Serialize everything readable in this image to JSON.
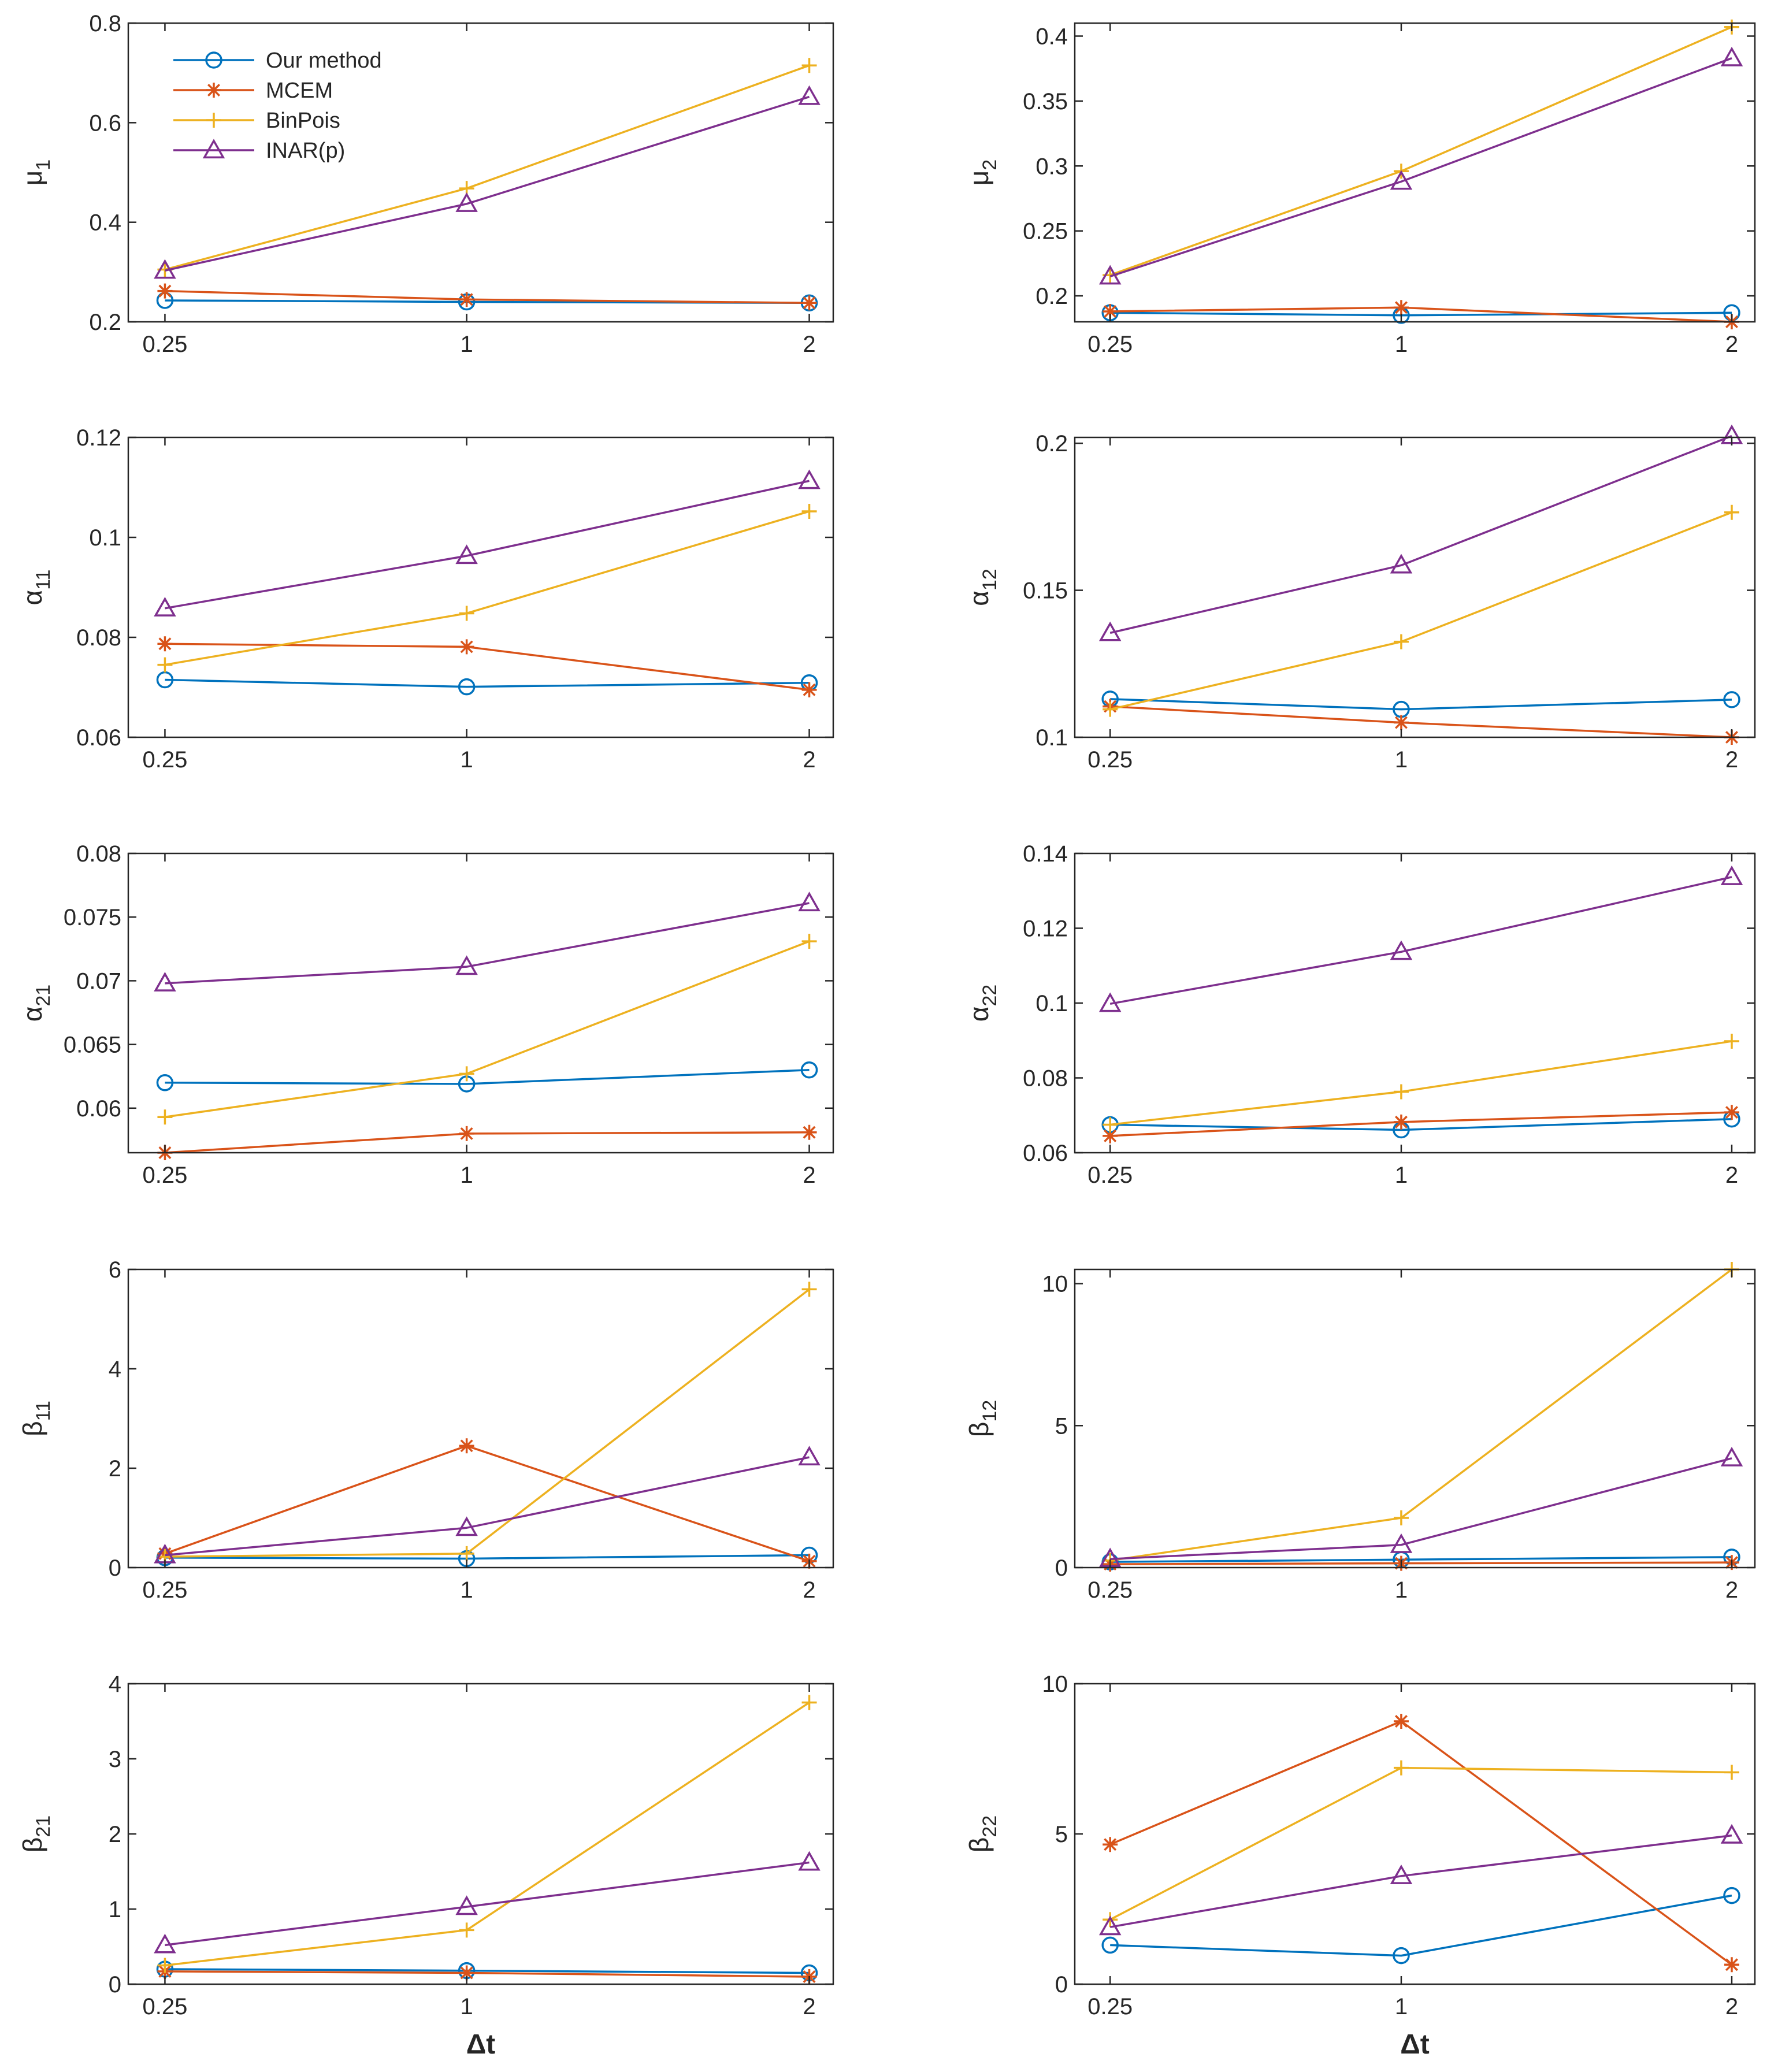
{
  "colors": {
    "our_method": "#0072BD",
    "mcem": "#D95319",
    "binpois": "#EDB120",
    "inar": "#7E2F8E",
    "axis": "#262626"
  },
  "legend": {
    "entries": [
      {
        "name": "Our method",
        "series_key": "our_method",
        "marker": "circle"
      },
      {
        "name": "MCEM",
        "series_key": "mcem",
        "marker": "asterisk"
      },
      {
        "name": "BinPois",
        "series_key": "binpois",
        "marker": "plus"
      },
      {
        "name": "INAR(p)",
        "series_key": "inar",
        "marker": "triangle"
      }
    ]
  },
  "chart_data": [
    {
      "type": "line",
      "ylabel": "μ",
      "ylabel_sub": "1",
      "xlabel": "",
      "categories": [
        "0.25",
        "1",
        "2"
      ],
      "ylim": [
        0.2,
        0.8
      ],
      "yticks": [
        "0.2",
        "0.4",
        "0.6",
        "0.8"
      ],
      "series": [
        {
          "name": "Our method",
          "key": "our_method",
          "marker": "circle",
          "values": [
            0.243,
            0.24,
            0.238
          ]
        },
        {
          "name": "MCEM",
          "key": "mcem",
          "marker": "asterisk",
          "values": [
            0.262,
            0.245,
            0.238
          ]
        },
        {
          "name": "BinPois",
          "key": "binpois",
          "marker": "plus",
          "values": [
            0.305,
            0.468,
            0.715
          ]
        },
        {
          "name": "INAR(p)",
          "key": "inar",
          "marker": "triangle",
          "values": [
            0.303,
            0.437,
            0.652
          ]
        }
      ]
    },
    {
      "type": "line",
      "ylabel": "μ",
      "ylabel_sub": "2",
      "xlabel": "",
      "categories": [
        "0.25",
        "1",
        "2"
      ],
      "ylim": [
        0.18,
        0.41
      ],
      "yticks": [
        "0.2",
        "0.25",
        "0.3",
        "0.35",
        "0.4"
      ],
      "series": [
        {
          "name": "Our method",
          "key": "our_method",
          "marker": "circle",
          "values": [
            0.187,
            0.185,
            0.187
          ]
        },
        {
          "name": "MCEM",
          "key": "mcem",
          "marker": "asterisk",
          "values": [
            0.188,
            0.191,
            0.18
          ]
        },
        {
          "name": "BinPois",
          "key": "binpois",
          "marker": "plus",
          "values": [
            0.216,
            0.296,
            0.407
          ]
        },
        {
          "name": "INAR(p)",
          "key": "inar",
          "marker": "triangle",
          "values": [
            0.215,
            0.288,
            0.383
          ]
        }
      ]
    },
    {
      "type": "line",
      "ylabel": "α",
      "ylabel_sub": "11",
      "xlabel": "",
      "categories": [
        "0.25",
        "1",
        "2"
      ],
      "ylim": [
        0.06,
        0.12
      ],
      "yticks": [
        "0.06",
        "0.08",
        "0.1",
        "0.12"
      ],
      "series": [
        {
          "name": "Our method",
          "key": "our_method",
          "marker": "circle",
          "values": [
            0.0715,
            0.0701,
            0.0709
          ]
        },
        {
          "name": "MCEM",
          "key": "mcem",
          "marker": "asterisk",
          "values": [
            0.0787,
            0.0781,
            0.0695
          ]
        },
        {
          "name": "BinPois",
          "key": "binpois",
          "marker": "plus",
          "values": [
            0.0745,
            0.0848,
            0.1052
          ]
        },
        {
          "name": "INAR(p)",
          "key": "inar",
          "marker": "triangle",
          "values": [
            0.0858,
            0.0963,
            0.1113
          ]
        }
      ]
    },
    {
      "type": "line",
      "ylabel": "α",
      "ylabel_sub": "12",
      "xlabel": "",
      "categories": [
        "0.25",
        "1",
        "2"
      ],
      "ylim": [
        0.1,
        0.202
      ],
      "yticks": [
        "0.1",
        "0.15",
        "0.2"
      ],
      "series": [
        {
          "name": "Our method",
          "key": "our_method",
          "marker": "circle",
          "values": [
            0.113,
            0.1095,
            0.1128
          ]
        },
        {
          "name": "MCEM",
          "key": "mcem",
          "marker": "asterisk",
          "values": [
            0.1105,
            0.105,
            0.1
          ]
        },
        {
          "name": "BinPois",
          "key": "binpois",
          "marker": "plus",
          "values": [
            0.1095,
            0.1325,
            0.1765
          ]
        },
        {
          "name": "INAR(p)",
          "key": "inar",
          "marker": "triangle",
          "values": [
            0.1355,
            0.1585,
            0.2025
          ]
        }
      ]
    },
    {
      "type": "line",
      "ylabel": "α",
      "ylabel_sub": "21",
      "xlabel": "",
      "categories": [
        "0.25",
        "1",
        "2"
      ],
      "ylim": [
        0.0565,
        0.08
      ],
      "yticks": [
        "0.06",
        "0.065",
        "0.07",
        "0.075",
        "0.08"
      ],
      "series": [
        {
          "name": "Our method",
          "key": "our_method",
          "marker": "circle",
          "values": [
            0.062,
            0.0619,
            0.063
          ]
        },
        {
          "name": "MCEM",
          "key": "mcem",
          "marker": "asterisk",
          "values": [
            0.0565,
            0.058,
            0.0581
          ]
        },
        {
          "name": "BinPois",
          "key": "binpois",
          "marker": "plus",
          "values": [
            0.0593,
            0.0627,
            0.0731
          ]
        },
        {
          "name": "INAR(p)",
          "key": "inar",
          "marker": "triangle",
          "values": [
            0.0698,
            0.0711,
            0.0761
          ]
        }
      ]
    },
    {
      "type": "line",
      "ylabel": "α",
      "ylabel_sub": "22",
      "xlabel": "",
      "categories": [
        "0.25",
        "1",
        "2"
      ],
      "ylim": [
        0.06,
        0.14
      ],
      "yticks": [
        "0.06",
        "0.08",
        "0.1",
        "0.12",
        "0.14"
      ],
      "series": [
        {
          "name": "Our method",
          "key": "our_method",
          "marker": "circle",
          "values": [
            0.0675,
            0.0661,
            0.069
          ]
        },
        {
          "name": "MCEM",
          "key": "mcem",
          "marker": "asterisk",
          "values": [
            0.0645,
            0.0682,
            0.0708
          ]
        },
        {
          "name": "BinPois",
          "key": "binpois",
          "marker": "plus",
          "values": [
            0.0675,
            0.0763,
            0.0898
          ]
        },
        {
          "name": "INAR(p)",
          "key": "inar",
          "marker": "triangle",
          "values": [
            0.0998,
            0.1137,
            0.1337
          ]
        }
      ]
    },
    {
      "type": "line",
      "ylabel": "β",
      "ylabel_sub": "11",
      "xlabel": "",
      "categories": [
        "0.25",
        "1",
        "2"
      ],
      "ylim": [
        0,
        6
      ],
      "yticks": [
        "0",
        "2",
        "4",
        "6"
      ],
      "series": [
        {
          "name": "Our method",
          "key": "our_method",
          "marker": "circle",
          "values": [
            0.2,
            0.18,
            0.25
          ]
        },
        {
          "name": "MCEM",
          "key": "mcem",
          "marker": "asterisk",
          "values": [
            0.28,
            2.45,
            0.13
          ]
        },
        {
          "name": "BinPois",
          "key": "binpois",
          "marker": "plus",
          "values": [
            0.22,
            0.28,
            5.6
          ]
        },
        {
          "name": "INAR(p)",
          "key": "inar",
          "marker": "triangle",
          "values": [
            0.25,
            0.8,
            2.22
          ]
        }
      ]
    },
    {
      "type": "line",
      "ylabel": "β",
      "ylabel_sub": "12",
      "xlabel": "",
      "categories": [
        "0.25",
        "1",
        "2"
      ],
      "ylim": [
        0,
        10.5
      ],
      "yticks": [
        "0",
        "5",
        "10"
      ],
      "series": [
        {
          "name": "Our method",
          "key": "our_method",
          "marker": "circle",
          "values": [
            0.2,
            0.28,
            0.37
          ]
        },
        {
          "name": "MCEM",
          "key": "mcem",
          "marker": "asterisk",
          "values": [
            0.12,
            0.15,
            0.18
          ]
        },
        {
          "name": "BinPois",
          "key": "binpois",
          "marker": "plus",
          "values": [
            0.25,
            1.75,
            10.5
          ]
        },
        {
          "name": "INAR(p)",
          "key": "inar",
          "marker": "triangle",
          "values": [
            0.3,
            0.8,
            3.85
          ]
        }
      ]
    },
    {
      "type": "line",
      "ylabel": "β",
      "ylabel_sub": "21",
      "xlabel": "Δt",
      "categories": [
        "0.25",
        "1",
        "2"
      ],
      "ylim": [
        0,
        4
      ],
      "yticks": [
        "0",
        "1",
        "2",
        "3",
        "4"
      ],
      "series": [
        {
          "name": "Our method",
          "key": "our_method",
          "marker": "circle",
          "values": [
            0.2,
            0.18,
            0.15
          ]
        },
        {
          "name": "MCEM",
          "key": "mcem",
          "marker": "asterisk",
          "values": [
            0.17,
            0.15,
            0.1
          ]
        },
        {
          "name": "BinPois",
          "key": "binpois",
          "marker": "plus",
          "values": [
            0.25,
            0.72,
            3.75
          ]
        },
        {
          "name": "INAR(p)",
          "key": "inar",
          "marker": "triangle",
          "values": [
            0.52,
            1.03,
            1.62
          ]
        }
      ]
    },
    {
      "type": "line",
      "ylabel": "β",
      "ylabel_sub": "22",
      "xlabel": "Δt",
      "categories": [
        "0.25",
        "1",
        "2"
      ],
      "ylim": [
        0,
        10
      ],
      "yticks": [
        "0",
        "5",
        "10"
      ],
      "series": [
        {
          "name": "Our method",
          "key": "our_method",
          "marker": "circle",
          "values": [
            1.3,
            0.95,
            2.95
          ]
        },
        {
          "name": "MCEM",
          "key": "mcem",
          "marker": "asterisk",
          "values": [
            4.65,
            8.75,
            0.65
          ]
        },
        {
          "name": "BinPois",
          "key": "binpois",
          "marker": "plus",
          "values": [
            2.15,
            7.2,
            7.05
          ]
        },
        {
          "name": "INAR(p)",
          "key": "inar",
          "marker": "triangle",
          "values": [
            1.9,
            3.6,
            4.95
          ]
        }
      ]
    }
  ]
}
